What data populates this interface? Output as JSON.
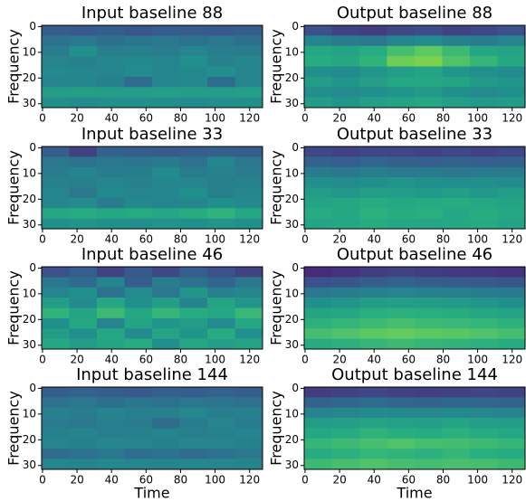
{
  "chart_data": [
    {
      "type": "heatmap",
      "title": "Input baseline 88",
      "ylabel": "Frequency",
      "colormap": "viridis",
      "xlim": [
        -0.5,
        127.5
      ],
      "ylim": [
        31.5,
        -0.5
      ],
      "xticks": [
        0,
        20,
        40,
        60,
        80,
        100,
        120
      ],
      "yticks": [
        0,
        10,
        20,
        30
      ],
      "values": [
        [
          0.3,
          0.28,
          0.3,
          0.27,
          0.3,
          0.29,
          0.28,
          0.3
        ],
        [
          0.38,
          0.4,
          0.37,
          0.39,
          0.4,
          0.38,
          0.4,
          0.37
        ],
        [
          0.42,
          0.5,
          0.43,
          0.44,
          0.42,
          0.45,
          0.43,
          0.42
        ],
        [
          0.45,
          0.44,
          0.46,
          0.47,
          0.45,
          0.5,
          0.44,
          0.46
        ],
        [
          0.47,
          0.46,
          0.45,
          0.48,
          0.46,
          0.47,
          0.49,
          0.45
        ],
        [
          0.45,
          0.46,
          0.44,
          0.35,
          0.45,
          0.47,
          0.36,
          0.45
        ],
        [
          0.55,
          0.56,
          0.55,
          0.55,
          0.56,
          0.55,
          0.55,
          0.56
        ],
        [
          0.5,
          0.48,
          0.5,
          0.49,
          0.5,
          0.48,
          0.49,
          0.5
        ]
      ]
    },
    {
      "type": "heatmap",
      "title": "Output baseline 88",
      "ylabel": "Frequency",
      "colormap": "viridis",
      "xlim": [
        -0.5,
        127.5
      ],
      "ylim": [
        31.5,
        -0.5
      ],
      "xticks": [
        0,
        20,
        40,
        60,
        80,
        100,
        120
      ],
      "yticks": [
        0,
        10,
        20,
        30
      ],
      "values": [
        [
          0.25,
          0.2,
          0.18,
          0.22,
          0.24,
          0.2,
          0.22,
          0.25
        ],
        [
          0.45,
          0.42,
          0.4,
          0.45,
          0.48,
          0.44,
          0.42,
          0.45
        ],
        [
          0.6,
          0.58,
          0.62,
          0.7,
          0.75,
          0.68,
          0.6,
          0.58
        ],
        [
          0.62,
          0.6,
          0.65,
          0.78,
          0.8,
          0.72,
          0.66,
          0.6
        ],
        [
          0.5,
          0.48,
          0.52,
          0.55,
          0.58,
          0.52,
          0.5,
          0.48
        ],
        [
          0.55,
          0.52,
          0.56,
          0.6,
          0.6,
          0.58,
          0.54,
          0.52
        ],
        [
          0.5,
          0.48,
          0.5,
          0.52,
          0.54,
          0.5,
          0.48,
          0.5
        ],
        [
          0.55,
          0.52,
          0.56,
          0.58,
          0.6,
          0.56,
          0.54,
          0.55
        ]
      ]
    },
    {
      "type": "heatmap",
      "title": "Input baseline 33",
      "ylabel": "Frequency",
      "colormap": "viridis",
      "xlim": [
        -0.5,
        127.5
      ],
      "ylim": [
        31.5,
        -0.5
      ],
      "xticks": [
        0,
        20,
        40,
        60,
        80,
        100,
        120
      ],
      "yticks": [
        0,
        10,
        20,
        30
      ],
      "values": [
        [
          0.3,
          0.2,
          0.32,
          0.3,
          0.28,
          0.3,
          0.31,
          0.3
        ],
        [
          0.4,
          0.38,
          0.4,
          0.39,
          0.41,
          0.38,
          0.45,
          0.4
        ],
        [
          0.42,
          0.45,
          0.42,
          0.43,
          0.48,
          0.42,
          0.44,
          0.42
        ],
        [
          0.44,
          0.43,
          0.45,
          0.44,
          0.46,
          0.45,
          0.43,
          0.44
        ],
        [
          0.45,
          0.4,
          0.47,
          0.45,
          0.46,
          0.5,
          0.44,
          0.46
        ],
        [
          0.46,
          0.48,
          0.42,
          0.47,
          0.45,
          0.46,
          0.5,
          0.47
        ],
        [
          0.6,
          0.62,
          0.6,
          0.61,
          0.6,
          0.62,
          0.65,
          0.6
        ],
        [
          0.5,
          0.52,
          0.5,
          0.49,
          0.51,
          0.5,
          0.52,
          0.5
        ]
      ]
    },
    {
      "type": "heatmap",
      "title": "Output baseline 33",
      "ylabel": "Frequency",
      "colormap": "viridis",
      "xlim": [
        -0.5,
        127.5
      ],
      "ylim": [
        31.5,
        -0.5
      ],
      "xticks": [
        0,
        20,
        40,
        60,
        80,
        100,
        120
      ],
      "yticks": [
        0,
        10,
        20,
        30
      ],
      "values": [
        [
          0.22,
          0.2,
          0.22,
          0.21,
          0.2,
          0.22,
          0.2,
          0.22
        ],
        [
          0.32,
          0.3,
          0.33,
          0.31,
          0.3,
          0.32,
          0.3,
          0.31
        ],
        [
          0.42,
          0.4,
          0.43,
          0.41,
          0.42,
          0.4,
          0.41,
          0.42
        ],
        [
          0.5,
          0.48,
          0.5,
          0.52,
          0.5,
          0.49,
          0.5,
          0.48
        ],
        [
          0.55,
          0.53,
          0.56,
          0.55,
          0.54,
          0.56,
          0.53,
          0.55
        ],
        [
          0.58,
          0.6,
          0.62,
          0.6,
          0.61,
          0.62,
          0.6,
          0.58
        ],
        [
          0.62,
          0.6,
          0.64,
          0.62,
          0.63,
          0.6,
          0.62,
          0.6
        ],
        [
          0.58,
          0.6,
          0.62,
          0.6,
          0.59,
          0.6,
          0.61,
          0.58
        ]
      ]
    },
    {
      "type": "heatmap",
      "title": "Input baseline 46",
      "ylabel": "Frequency",
      "colormap": "viridis",
      "xlim": [
        -0.5,
        127.5
      ],
      "ylim": [
        31.5,
        -0.5
      ],
      "xticks": [
        0,
        20,
        40,
        60,
        80,
        100,
        120
      ],
      "yticks": [
        0,
        10,
        20,
        30
      ],
      "values": [
        [
          0.25,
          0.3,
          0.2,
          0.28,
          0.22,
          0.3,
          0.25,
          0.2
        ],
        [
          0.4,
          0.35,
          0.45,
          0.3,
          0.42,
          0.38,
          0.33,
          0.4
        ],
        [
          0.45,
          0.5,
          0.38,
          0.48,
          0.4,
          0.52,
          0.44,
          0.46
        ],
        [
          0.55,
          0.48,
          0.6,
          0.5,
          0.56,
          0.45,
          0.58,
          0.52
        ],
        [
          0.65,
          0.58,
          0.68,
          0.6,
          0.66,
          0.62,
          0.6,
          0.67
        ],
        [
          0.5,
          0.6,
          0.45,
          0.58,
          0.52,
          0.55,
          0.48,
          0.6
        ],
        [
          0.55,
          0.5,
          0.6,
          0.48,
          0.58,
          0.52,
          0.62,
          0.5
        ],
        [
          0.6,
          0.55,
          0.58,
          0.62,
          0.5,
          0.6,
          0.56,
          0.58
        ]
      ]
    },
    {
      "type": "heatmap",
      "title": "Output baseline 46",
      "ylabel": "Frequency",
      "colormap": "viridis",
      "xlim": [
        -0.5,
        127.5
      ],
      "ylim": [
        31.5,
        -0.5
      ],
      "xticks": [
        0,
        20,
        40,
        60,
        80,
        100,
        120
      ],
      "yticks": [
        0,
        10,
        20,
        30
      ],
      "values": [
        [
          0.12,
          0.15,
          0.18,
          0.2,
          0.18,
          0.17,
          0.16,
          0.15
        ],
        [
          0.25,
          0.27,
          0.3,
          0.32,
          0.3,
          0.29,
          0.28,
          0.27
        ],
        [
          0.4,
          0.42,
          0.44,
          0.45,
          0.44,
          0.43,
          0.42,
          0.41
        ],
        [
          0.5,
          0.52,
          0.55,
          0.56,
          0.55,
          0.54,
          0.52,
          0.5
        ],
        [
          0.58,
          0.6,
          0.63,
          0.64,
          0.63,
          0.62,
          0.6,
          0.58
        ],
        [
          0.64,
          0.66,
          0.68,
          0.7,
          0.68,
          0.67,
          0.66,
          0.64
        ],
        [
          0.7,
          0.72,
          0.75,
          0.76,
          0.75,
          0.74,
          0.72,
          0.7
        ],
        [
          0.62,
          0.64,
          0.66,
          0.68,
          0.66,
          0.65,
          0.64,
          0.62
        ]
      ]
    },
    {
      "type": "heatmap",
      "title": "Input baseline 144",
      "xlabel": "Time",
      "ylabel": "Frequency",
      "colormap": "viridis",
      "xlim": [
        -0.5,
        127.5
      ],
      "ylim": [
        31.5,
        -0.5
      ],
      "xticks": [
        0,
        20,
        40,
        60,
        80,
        100,
        120
      ],
      "yticks": [
        0,
        10,
        20,
        30
      ],
      "values": [
        [
          0.3,
          0.32,
          0.3,
          0.28,
          0.31,
          0.3,
          0.32,
          0.3
        ],
        [
          0.38,
          0.4,
          0.37,
          0.39,
          0.38,
          0.4,
          0.39,
          0.38
        ],
        [
          0.44,
          0.42,
          0.45,
          0.43,
          0.44,
          0.46,
          0.43,
          0.44
        ],
        [
          0.42,
          0.4,
          0.43,
          0.42,
          0.35,
          0.42,
          0.45,
          0.42
        ],
        [
          0.44,
          0.45,
          0.43,
          0.44,
          0.45,
          0.43,
          0.44,
          0.45
        ],
        [
          0.45,
          0.44,
          0.46,
          0.45,
          0.44,
          0.46,
          0.45,
          0.44
        ],
        [
          0.35,
          0.38,
          0.4,
          0.36,
          0.38,
          0.35,
          0.38,
          0.4
        ],
        [
          0.46,
          0.45,
          0.47,
          0.46,
          0.45,
          0.47,
          0.46,
          0.45
        ]
      ]
    },
    {
      "type": "heatmap",
      "title": "Output baseline 144",
      "xlabel": "Time",
      "ylabel": "Frequency",
      "colormap": "viridis",
      "xlim": [
        -0.5,
        127.5
      ],
      "ylim": [
        31.5,
        -0.5
      ],
      "xticks": [
        0,
        20,
        40,
        60,
        80,
        100,
        120
      ],
      "yticks": [
        0,
        10,
        20,
        30
      ],
      "values": [
        [
          0.18,
          0.2,
          0.22,
          0.2,
          0.19,
          0.2,
          0.21,
          0.2
        ],
        [
          0.32,
          0.34,
          0.35,
          0.33,
          0.32,
          0.34,
          0.33,
          0.32
        ],
        [
          0.45,
          0.46,
          0.48,
          0.47,
          0.46,
          0.47,
          0.46,
          0.45
        ],
        [
          0.55,
          0.56,
          0.58,
          0.57,
          0.56,
          0.58,
          0.56,
          0.55
        ],
        [
          0.6,
          0.62,
          0.65,
          0.63,
          0.62,
          0.64,
          0.62,
          0.6
        ],
        [
          0.66,
          0.68,
          0.7,
          0.72,
          0.7,
          0.69,
          0.68,
          0.66
        ],
        [
          0.62,
          0.64,
          0.66,
          0.65,
          0.64,
          0.66,
          0.63,
          0.62
        ],
        [
          0.68,
          0.7,
          0.72,
          0.7,
          0.69,
          0.71,
          0.7,
          0.68
        ]
      ]
    }
  ]
}
